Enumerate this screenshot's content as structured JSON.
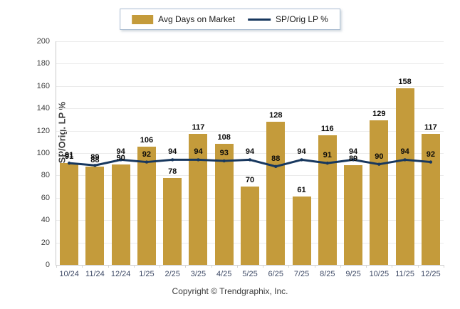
{
  "legend": {
    "bar_label": "Avg Days on Market",
    "line_label": "SP/Orig LP %"
  },
  "y_axis_title": "SP/Orig. LP %",
  "footer": {
    "copyright": "Copyright © Trendgraphix, Inc."
  },
  "colors": {
    "bar": "#c49b3b",
    "line": "#17375e",
    "grid": "#ebebeb",
    "value_label": "#0a0a0a"
  },
  "chart_data": {
    "type": "bar",
    "categories": [
      "10/24",
      "11/24",
      "12/24",
      "1/25",
      "2/25",
      "3/25",
      "4/25",
      "5/25",
      "6/25",
      "7/25",
      "8/25",
      "9/25",
      "10/25",
      "11/25",
      "12/25"
    ],
    "series": [
      {
        "name": "Avg Days on Market",
        "type": "bar",
        "values": [
          91,
          88,
          90,
          106,
          78,
          117,
          108,
          70,
          128,
          61,
          116,
          89,
          129,
          158,
          117
        ]
      },
      {
        "name": "SP/Orig LP %",
        "type": "line",
        "values": [
          91,
          89,
          94,
          92,
          94,
          94,
          93,
          94,
          88,
          94,
          91,
          94,
          90,
          94,
          92
        ]
      }
    ],
    "title": "",
    "xlabel": "",
    "ylabel": "SP/Orig. LP %",
    "ylim": [
      0,
      200
    ],
    "yticks": [
      0,
      20,
      40,
      60,
      80,
      100,
      120,
      140,
      160,
      180,
      200
    ],
    "grid": true,
    "legend_position": "top",
    "data_labels": true
  }
}
